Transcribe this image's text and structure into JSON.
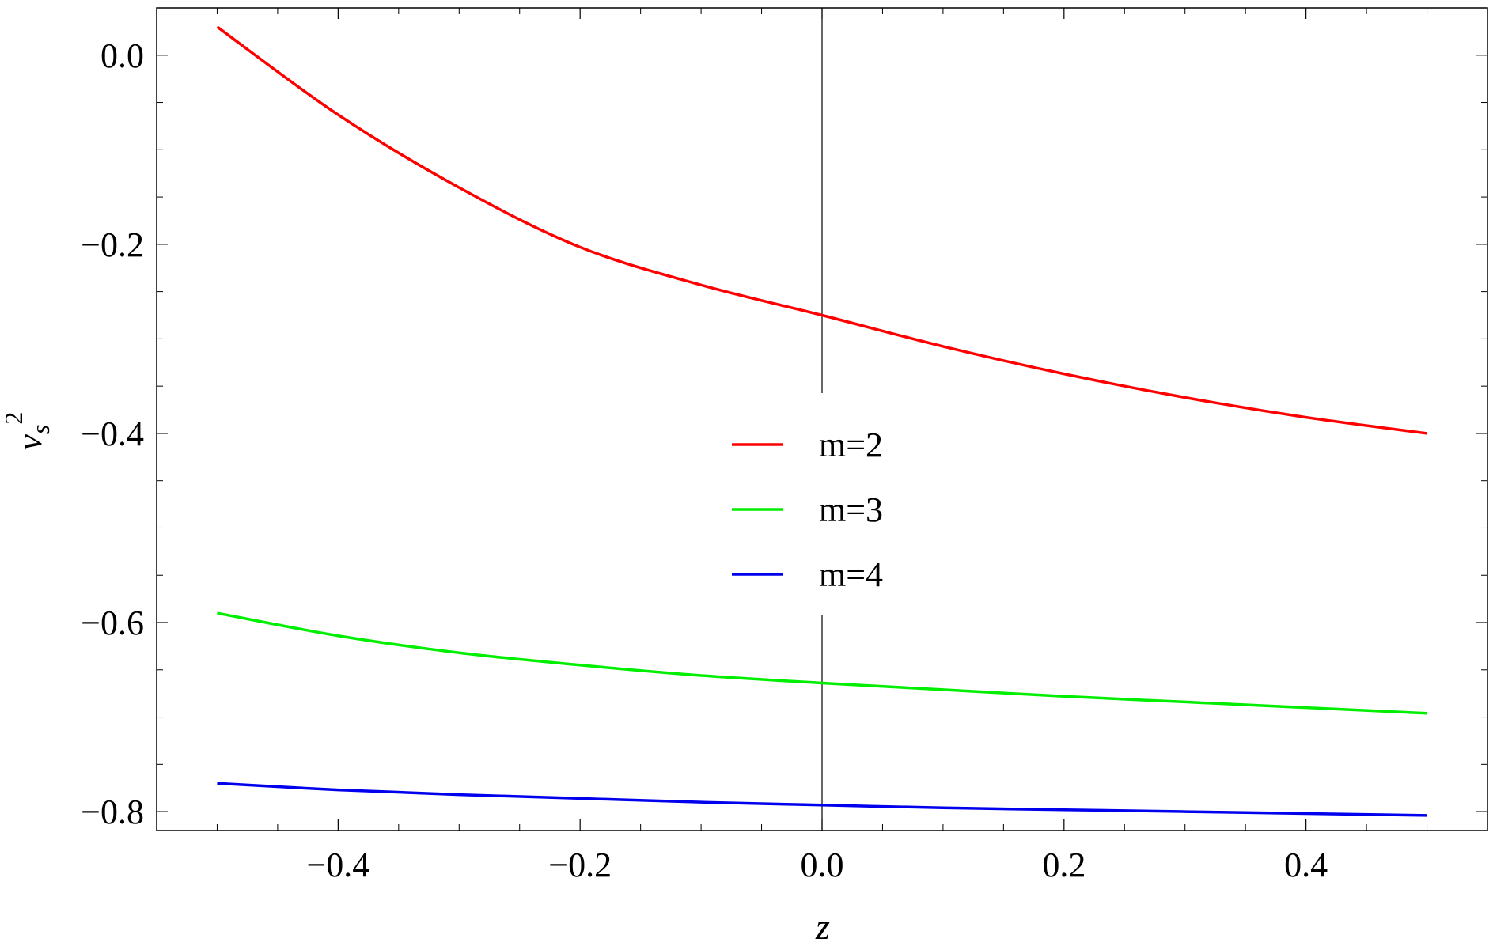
{
  "chart_data": {
    "type": "line",
    "xlabel": "z",
    "ylabel_base": "v",
    "ylabel_sub": "s",
    "ylabel_sup": "2",
    "xlim": [
      -0.55,
      0.55
    ],
    "ylim": [
      -0.82,
      0.05
    ],
    "xticks": [
      -0.4,
      -0.2,
      0.0,
      0.2,
      0.4
    ],
    "xtick_labels": [
      "−0.4",
      "−0.2",
      "0.0",
      "0.2",
      "0.4"
    ],
    "yticks": [
      0.0,
      -0.2,
      -0.4,
      -0.6,
      -0.8
    ],
    "ytick_labels": [
      "0.0",
      "−0.2",
      "−0.4",
      "−0.6",
      "−0.8"
    ],
    "grid": false,
    "legend_position": "center",
    "colors": {
      "m2": "#ff0000",
      "m3": "#00ee00",
      "m4": "#0000ee"
    },
    "x": [
      -0.5,
      -0.4,
      -0.3,
      -0.2,
      -0.1,
      0.0,
      0.1,
      0.2,
      0.3,
      0.4,
      0.5
    ],
    "series": [
      {
        "name": "m=2",
        "color": "#ff0000",
        "values": [
          0.03,
          -0.063,
          -0.14,
          -0.203,
          -0.243,
          -0.275,
          -0.308,
          -0.337,
          -0.362,
          -0.383,
          -0.4
        ]
      },
      {
        "name": "m=3",
        "color": "#00ee00",
        "values": [
          -0.59,
          -0.614,
          -0.632,
          -0.645,
          -0.656,
          -0.664,
          -0.671,
          -0.678,
          -0.684,
          -0.69,
          -0.696
        ]
      },
      {
        "name": "m=4",
        "color": "#0000ee",
        "values": [
          -0.77,
          -0.777,
          -0.782,
          -0.786,
          -0.79,
          -0.793,
          -0.796,
          -0.798,
          -0.8,
          -0.802,
          -0.804
        ]
      }
    ]
  }
}
